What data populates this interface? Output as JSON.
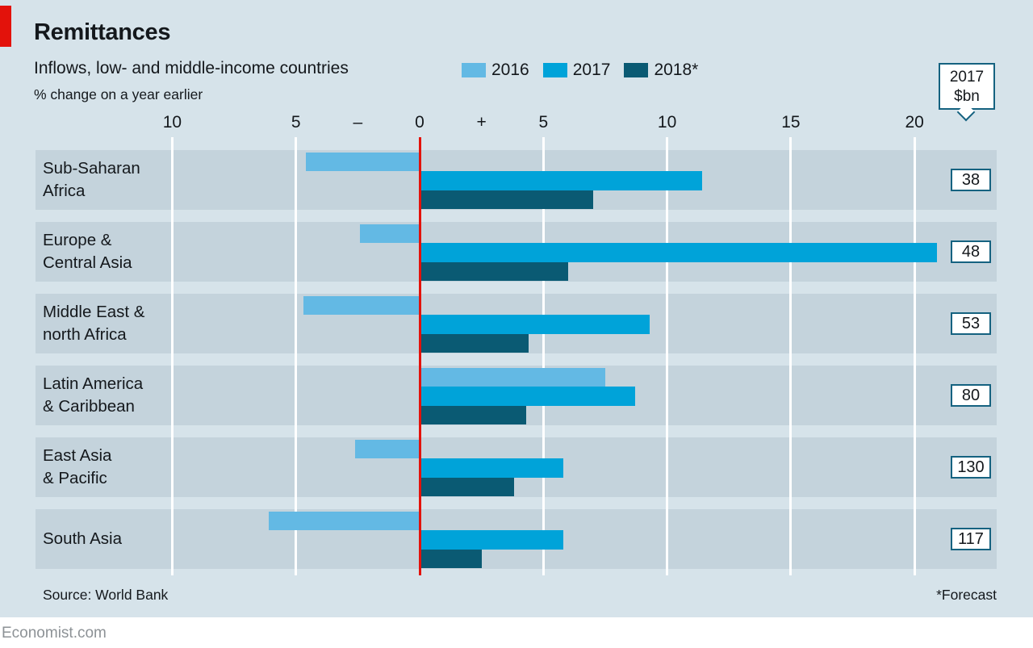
{
  "header": {
    "title": "Remittances",
    "subtitle": "Inflows, low- and middle-income countries",
    "unit": "% change on a year earlier"
  },
  "legend": {
    "items": [
      {
        "label": "2016"
      },
      {
        "label": "2017"
      },
      {
        "label": "2018*"
      }
    ]
  },
  "callout": {
    "line1": "2017",
    "line2": "$bn"
  },
  "footer": {
    "source": "Source: World Bank",
    "note": "*Forecast",
    "brand": "Economist.com"
  },
  "colors": {
    "background": "#d6e3ea",
    "band": "#c4d3dc",
    "accent_red": "#e3120b",
    "series_2016": "#63b9e4",
    "series_2017": "#00a3d9",
    "series_2018": "#0a5a73",
    "box_border": "#156280",
    "gridline": "#ffffff",
    "text": "#14181c",
    "brand_gray": "#8d9296"
  },
  "chart_data": {
    "type": "bar",
    "orientation": "horizontal",
    "title": "Remittances",
    "subtitle": "Inflows, low- and middle-income countries",
    "xlabel": "% change on a year earlier",
    "ylabel": "",
    "xlim": [
      -12.4,
      23.3
    ],
    "grid": "vertical white gridlines every 5 units, red vertical line at zero",
    "legend_position": "top",
    "categories": [
      "Sub-Saharan Africa",
      "Europe & Central Asia",
      "Middle East & north Africa",
      "Latin America & Caribbean",
      "East Asia & Pacific",
      "South Asia"
    ],
    "categories_display": [
      "Sub-Saharan\nAfrica",
      "Europe &\nCentral Asia",
      "Middle East &\nnorth Africa",
      "Latin America\n& Caribbean",
      "East Asia\n& Pacific",
      "South Asia"
    ],
    "series": [
      {
        "name": "2016",
        "values": [
          -4.6,
          -2.4,
          -4.7,
          7.5,
          -2.6,
          -6.1
        ]
      },
      {
        "name": "2017",
        "values": [
          11.4,
          20.9,
          9.3,
          8.7,
          5.8,
          5.8
        ]
      },
      {
        "name": "2018*",
        "values": [
          7.0,
          6.0,
          4.4,
          4.3,
          3.8,
          2.5
        ]
      }
    ],
    "right_labels": {
      "header": "2017 $bn",
      "values": [
        "38",
        "48",
        "53",
        "80",
        "130",
        "117"
      ]
    },
    "axis_ticks": [
      {
        "label": "10",
        "pos": -10
      },
      {
        "label": "5",
        "pos": -5
      },
      {
        "label": "–",
        "pos": -2.5
      },
      {
        "label": "0",
        "pos": 0
      },
      {
        "label": "+",
        "pos": 2.5
      },
      {
        "label": "5",
        "pos": 5
      },
      {
        "label": "10",
        "pos": 10
      },
      {
        "label": "15",
        "pos": 15
      },
      {
        "label": "20",
        "pos": 20
      }
    ],
    "gridlines": [
      -10,
      -5,
      0,
      5,
      10,
      15,
      20
    ],
    "source": "World Bank",
    "footnote": "*Forecast"
  }
}
